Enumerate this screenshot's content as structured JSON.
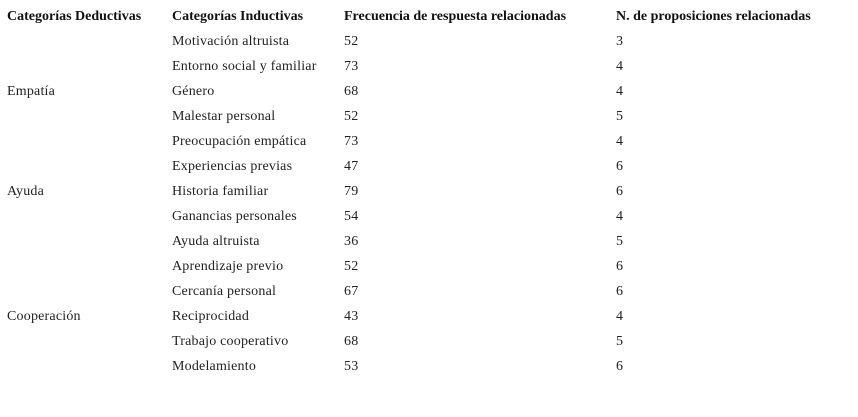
{
  "table": {
    "header": [
      "Categorías Deductivas",
      "Categorías Inductivas",
      "Frecuencia de respuesta relacionadas",
      "N. de proposiciones relacionadas"
    ],
    "rows": [
      [
        null,
        "Motivación altruista",
        52,
        3
      ],
      [
        null,
        "Entorno social y familiar",
        73,
        4
      ],
      [
        "Empatía",
        "Género",
        68,
        4
      ],
      [
        null,
        "Malestar personal",
        52,
        5
      ],
      [
        null,
        "Preocupación empática",
        73,
        4
      ],
      [
        null,
        "Experiencias previas",
        47,
        6
      ],
      [
        "Ayuda",
        "Historia familiar",
        79,
        6
      ],
      [
        null,
        "Ganancias personales",
        54,
        4
      ],
      [
        null,
        "Ayuda altruista",
        36,
        5
      ],
      [
        null,
        "Aprendizaje previo",
        52,
        6
      ],
      [
        null,
        "Cercanía personal",
        67,
        6
      ],
      [
        "Cooperación",
        "Reciprocidad",
        43,
        4
      ],
      [
        null,
        "Trabajo cooperativo",
        68,
        5
      ],
      [
        null,
        "Modelamiento",
        53,
        6
      ]
    ]
  }
}
